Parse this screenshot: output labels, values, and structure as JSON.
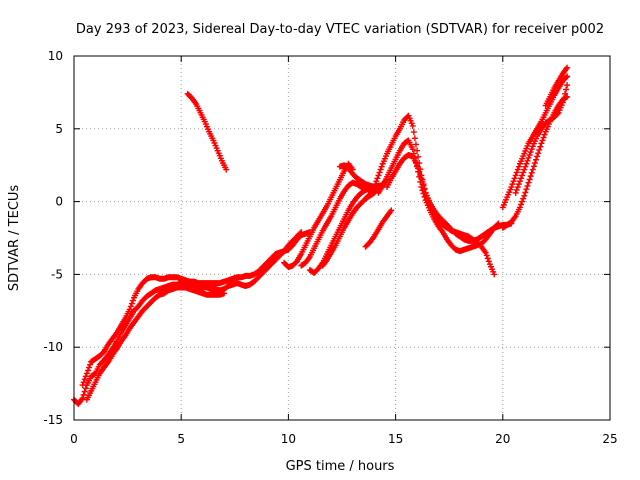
{
  "chart_data": {
    "type": "scatter",
    "title": "Day 293 of 2023, Sidereal Day-to-day VTEC variation (SDTVAR) for receiver p002",
    "xlabel": "GPS time / hours",
    "ylabel": "SDTVAR / TECUs",
    "xlim": [
      0,
      25
    ],
    "ylim": [
      -15,
      10
    ],
    "xticks": [
      0,
      5,
      10,
      15,
      20,
      25
    ],
    "yticks": [
      -15,
      -10,
      -5,
      0,
      5,
      10
    ],
    "xtick_labels": [
      "0",
      "5",
      "10",
      "15",
      "20",
      "25"
    ],
    "ytick_labels": [
      "-15",
      "-10",
      "-5",
      "0",
      "5",
      "10"
    ],
    "grid": true,
    "marker": "plus",
    "color": "#ff0000",
    "series": [
      {
        "name": "main",
        "x": [
          0.0,
          0.2,
          0.4,
          0.6,
          0.8,
          1.0,
          1.2,
          1.4,
          1.6,
          1.8,
          2.0,
          2.2,
          2.4,
          2.6,
          2.8,
          3.0,
          3.2,
          3.4,
          3.6,
          3.8,
          4.0,
          4.2,
          4.4,
          4.6,
          4.8,
          5.0,
          5.2,
          5.4,
          5.6,
          5.8,
          6.0,
          6.2,
          6.4,
          6.6,
          6.8,
          7.0,
          7.2,
          7.4,
          7.6,
          7.8,
          8.0,
          8.2,
          8.4,
          8.6,
          8.8,
          9.0,
          9.2,
          9.4,
          9.6,
          9.8,
          10.0,
          10.2,
          10.4,
          10.6
        ],
        "y": [
          -13.6,
          -13.9,
          -13.5,
          -12.6,
          -12.0,
          -11.8,
          -11.2,
          -10.9,
          -10.5,
          -10.1,
          -9.6,
          -9.0,
          -8.5,
          -8.0,
          -7.5,
          -7.2,
          -6.8,
          -6.5,
          -6.3,
          -6.1,
          -6.0,
          -5.9,
          -5.8,
          -5.7,
          -5.7,
          -5.6,
          -5.7,
          -5.8,
          -5.8,
          -5.9,
          -5.9,
          -5.9,
          -6.0,
          -6.0,
          -6.1,
          -6.0,
          -5.8,
          -5.7,
          -5.6,
          -5.7,
          -5.8,
          -5.7,
          -5.5,
          -5.2,
          -4.9,
          -4.6,
          -4.3,
          -4.0,
          -3.7,
          -3.4,
          -3.0,
          -2.7,
          -2.4,
          -2.1
        ]
      },
      {
        "name": "upper",
        "x": [
          0.4,
          0.6,
          0.8,
          1.0,
          1.2,
          1.4,
          1.6,
          1.8,
          2.0,
          2.2,
          2.4,
          2.6,
          2.8,
          3.0,
          3.2,
          3.4,
          3.6,
          3.8,
          4.0,
          4.2,
          4.4,
          4.6,
          4.8,
          5.0,
          5.2,
          5.4,
          5.6,
          5.8,
          6.0,
          6.2,
          6.4,
          6.6,
          6.8,
          7.0,
          7.2,
          7.4,
          7.6,
          7.8,
          8.0,
          8.2,
          8.4,
          8.6,
          8.8,
          9.0,
          9.2,
          9.4,
          9.6,
          9.8,
          10.0,
          10.2,
          10.4,
          10.6,
          10.8,
          11.0
        ],
        "y": [
          -12.6,
          -11.8,
          -11.0,
          -10.8,
          -10.6,
          -10.3,
          -9.8,
          -9.4,
          -9.0,
          -8.5,
          -8.0,
          -7.4,
          -6.6,
          -6.0,
          -5.6,
          -5.3,
          -5.2,
          -5.2,
          -5.3,
          -5.3,
          -5.2,
          -5.2,
          -5.2,
          -5.3,
          -5.4,
          -5.5,
          -5.5,
          -5.6,
          -5.6,
          -5.6,
          -5.6,
          -5.6,
          -5.6,
          -5.5,
          -5.4,
          -5.3,
          -5.2,
          -5.2,
          -5.1,
          -5.1,
          -5.0,
          -4.8,
          -4.5,
          -4.2,
          -3.9,
          -3.6,
          -3.5,
          -3.4,
          -3.3,
          -3.0,
          -2.6,
          -2.3,
          -2.2,
          -2.1
        ]
      },
      {
        "name": "lower",
        "x": [
          0.6,
          0.8,
          1.0,
          1.2,
          1.4,
          1.6,
          1.8,
          2.0,
          2.2,
          2.4,
          2.6,
          2.8,
          3.0,
          3.2,
          3.4,
          3.6,
          3.8,
          4.0,
          4.2,
          4.4,
          4.6,
          4.8,
          5.0,
          5.2,
          5.4,
          5.6,
          5.8,
          6.0,
          6.2,
          6.4,
          6.6,
          6.8,
          7.0
        ],
        "y": [
          -13.6,
          -13.0,
          -12.4,
          -11.8,
          -11.4,
          -11.0,
          -10.5,
          -10.1,
          -9.6,
          -9.2,
          -8.7,
          -8.3,
          -7.9,
          -7.5,
          -7.2,
          -6.9,
          -6.6,
          -6.4,
          -6.3,
          -6.1,
          -6.0,
          -5.9,
          -5.9,
          -5.9,
          -6.0,
          -6.1,
          -6.2,
          -6.3,
          -6.4,
          -6.4,
          -6.4,
          -6.4,
          -6.3
        ]
      },
      {
        "name": "isolated",
        "x": [
          5.3,
          5.5,
          5.7,
          5.9,
          6.1,
          6.3,
          6.5,
          6.7,
          6.9,
          7.1
        ],
        "y": [
          7.4,
          7.1,
          6.7,
          6.1,
          5.5,
          4.8,
          4.2,
          3.5,
          2.8,
          2.2
        ]
      },
      {
        "name": "arc-1",
        "x": [
          9.8,
          10.0,
          10.2,
          10.4,
          10.6,
          10.8,
          11.0,
          11.2,
          11.4,
          11.6,
          11.8,
          12.0,
          12.2,
          12.4,
          12.6,
          12.8,
          13.0
        ],
        "y": [
          -4.2,
          -4.5,
          -4.4,
          -4.1,
          -3.6,
          -3.0,
          -2.4,
          -1.8,
          -1.3,
          -0.8,
          -0.3,
          0.3,
          0.9,
          1.5,
          2.1,
          2.6,
          2.2
        ]
      },
      {
        "name": "arc-2",
        "x": [
          10.6,
          10.8,
          11.0,
          11.2,
          11.4,
          11.6,
          11.8,
          12.0,
          12.2,
          12.4,
          12.6,
          12.8,
          13.0,
          13.2,
          13.4,
          13.6,
          13.8
        ],
        "y": [
          -4.4,
          -4.2,
          -3.8,
          -3.2,
          -2.6,
          -2.0,
          -1.5,
          -1.0,
          -0.4,
          0.2,
          0.7,
          1.1,
          1.3,
          1.2,
          1.0,
          0.9,
          0.8
        ]
      },
      {
        "name": "arc-3",
        "x": [
          11.0,
          11.2,
          11.4,
          11.6,
          11.8,
          12.0,
          12.2,
          12.4,
          12.6,
          12.8,
          13.0,
          13.2,
          13.4,
          13.6,
          13.8,
          14.0,
          14.2,
          14.4
        ],
        "y": [
          -4.7,
          -4.9,
          -4.6,
          -4.2,
          -3.6,
          -3.0,
          -2.4,
          -1.8,
          -1.2,
          -0.6,
          -0.1,
          0.3,
          0.6,
          0.8,
          0.9,
          1.0,
          1.1,
          1.1
        ]
      },
      {
        "name": "arc-4",
        "x": [
          11.6,
          11.8,
          12.0,
          12.2,
          12.4,
          12.6,
          12.8,
          13.0,
          13.2,
          13.4,
          13.6,
          13.8,
          14.0,
          14.2,
          14.4,
          14.6
        ],
        "y": [
          -4.4,
          -4.0,
          -3.5,
          -3.0,
          -2.4,
          -1.8,
          -1.3,
          -0.8,
          -0.4,
          -0.1,
          0.2,
          0.4,
          0.6,
          0.9,
          1.2,
          1.5
        ]
      },
      {
        "name": "short-segment",
        "x": [
          13.6,
          13.8,
          14.0,
          14.2,
          14.4,
          14.6,
          14.8
        ],
        "y": [
          -3.1,
          -2.8,
          -2.4,
          -1.9,
          -1.4,
          -1.0,
          -0.6
        ]
      },
      {
        "name": "peak-a",
        "x": [
          13.6,
          13.8,
          14.0,
          14.2,
          14.4,
          14.6,
          14.8,
          15.0,
          15.2,
          15.4,
          15.6,
          15.8,
          16.0,
          16.2,
          16.4,
          16.6,
          16.8,
          17.0,
          17.2,
          17.4,
          17.6,
          17.8,
          18.0,
          18.2,
          18.4,
          18.6,
          18.8,
          19.0,
          19.2,
          19.4,
          19.6
        ],
        "y": [
          0.2,
          0.5,
          1.0,
          1.8,
          2.6,
          3.3,
          3.9,
          4.5,
          5.0,
          5.6,
          5.9,
          5.2,
          3.5,
          1.8,
          0.6,
          -0.2,
          -0.9,
          -1.3,
          -1.6,
          -1.8,
          -2.0,
          -2.1,
          -2.2,
          -2.3,
          -2.4,
          -2.6,
          -2.8,
          -3.1,
          -3.5,
          -4.3,
          -5.0
        ]
      },
      {
        "name": "peak-b",
        "x": [
          14.2,
          14.4,
          14.6,
          14.8,
          15.0,
          15.2,
          15.4,
          15.6,
          15.8,
          16.0,
          16.2,
          16.4,
          16.6,
          16.8,
          17.0,
          17.2,
          17.4,
          17.6,
          17.8,
          18.0,
          18.2,
          18.4,
          18.6,
          18.8,
          19.0,
          19.2,
          19.4,
          19.6,
          19.8
        ],
        "y": [
          0.6,
          1.1,
          1.7,
          2.3,
          2.9,
          3.5,
          4.0,
          4.2,
          3.6,
          2.4,
          1.0,
          0.1,
          -0.6,
          -1.2,
          -1.7,
          -2.1,
          -2.6,
          -3.0,
          -3.3,
          -3.4,
          -3.3,
          -3.2,
          -3.1,
          -3.0,
          -2.9,
          -2.6,
          -2.2,
          -1.8,
          -1.5
        ]
      },
      {
        "name": "peak-c",
        "x": [
          14.6,
          14.8,
          15.0,
          15.2,
          15.4,
          15.6,
          15.8,
          16.0,
          16.2,
          16.4,
          16.6,
          16.8,
          17.0,
          17.2,
          17.4,
          17.6,
          17.8,
          18.0,
          18.2,
          18.4,
          18.6,
          18.8,
          19.0,
          19.2,
          19.4,
          19.6,
          19.8,
          20.0,
          20.2,
          20.4
        ],
        "y": [
          1.0,
          1.6,
          2.1,
          2.6,
          3.0,
          3.2,
          3.1,
          2.5,
          1.6,
          0.6,
          -0.1,
          -0.6,
          -1.0,
          -1.3,
          -1.6,
          -1.9,
          -2.2,
          -2.4,
          -2.6,
          -2.7,
          -2.7,
          -2.6,
          -2.4,
          -2.2,
          -2.0,
          -1.8,
          -1.7,
          -1.6,
          -1.6,
          -1.5
        ]
      },
      {
        "name": "rise-a",
        "x": [
          20.0,
          20.2,
          20.4,
          20.6,
          20.8,
          21.0,
          21.2,
          21.4,
          21.6,
          21.8,
          22.0,
          22.2,
          22.4,
          22.6,
          22.8,
          23.0
        ],
        "y": [
          -1.8,
          -1.6,
          -1.4,
          -1.0,
          -0.4,
          0.4,
          1.3,
          2.2,
          3.1,
          4.0,
          4.8,
          5.5,
          6.1,
          6.6,
          7.0,
          7.2
        ]
      },
      {
        "name": "rise-b",
        "x": [
          20.0,
          20.2,
          20.4,
          20.6,
          20.8,
          21.0,
          21.2,
          21.4,
          21.6,
          21.8,
          22.0,
          22.2,
          22.4,
          22.6,
          22.8,
          23.0
        ],
        "y": [
          -0.4,
          0.3,
          1.0,
          1.8,
          2.6,
          3.3,
          4.0,
          4.5,
          5.0,
          5.5,
          6.1,
          6.7,
          7.3,
          7.8,
          8.3,
          8.6
        ]
      },
      {
        "name": "rise-c",
        "x": [
          20.6,
          20.8,
          21.0,
          21.2,
          21.4,
          21.6,
          21.8,
          22.0,
          22.2,
          22.4,
          22.6,
          22.8,
          23.0
        ],
        "y": [
          0.6,
          1.4,
          2.2,
          3.0,
          3.8,
          4.5,
          5.0,
          5.4,
          5.6,
          5.8,
          6.1,
          6.8,
          8.0
        ]
      },
      {
        "name": "top-run",
        "x": [
          22.0,
          22.2,
          22.4,
          22.6,
          22.8,
          23.0
        ],
        "y": [
          6.6,
          7.2,
          7.8,
          8.3,
          8.8,
          9.2
        ]
      },
      {
        "name": "upper-shelf",
        "x": [
          12.4,
          12.6,
          12.8,
          13.0,
          13.2,
          13.4,
          13.6,
          13.8,
          14.0
        ],
        "y": [
          2.4,
          2.5,
          2.3,
          1.9,
          1.6,
          1.4,
          1.2,
          1.1,
          1.0
        ]
      }
    ]
  }
}
